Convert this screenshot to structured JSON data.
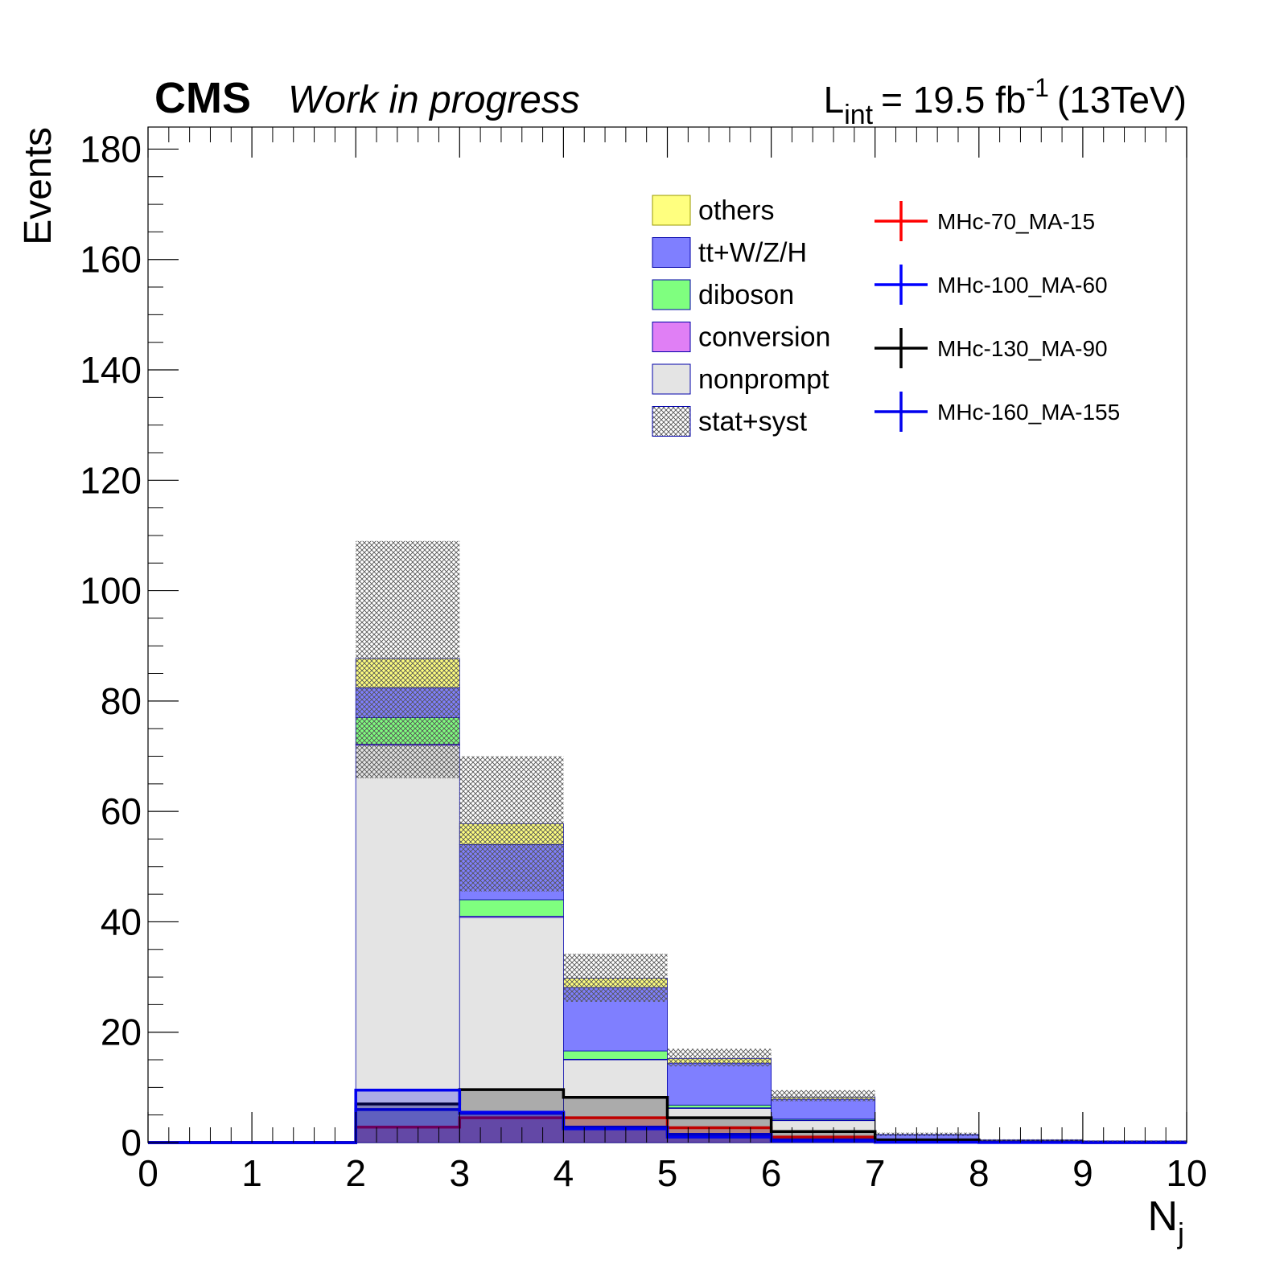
{
  "header": {
    "experiment": "CMS",
    "status": "Work in progress",
    "lumi_symbol": "L",
    "lumi_sub": "int",
    "lumi_value": "= 19.5 fb",
    "lumi_sup": "-1",
    "energy": "(13TeV)"
  },
  "chart_data": {
    "type": "bar",
    "stacked": true,
    "histogram": true,
    "bin_edges": [
      0,
      1,
      2,
      3,
      4,
      5,
      6,
      7,
      8,
      9,
      10
    ],
    "xlabel_main": "N",
    "xlabel_sub": "j",
    "ylabel": "Events",
    "xlim": [
      0,
      10
    ],
    "ylim": [
      0,
      184
    ],
    "x_ticks": [
      "0",
      "1",
      "2",
      "3",
      "4",
      "5",
      "6",
      "7",
      "8",
      "9",
      "10"
    ],
    "y_ticks": [
      "0",
      "20",
      "40",
      "60",
      "80",
      "100",
      "120",
      "140",
      "160",
      "180"
    ],
    "grid": false,
    "legend_position": "top-right",
    "series": [
      {
        "name": "nonprompt",
        "color": "#e4e4e4",
        "values": [
          0,
          0,
          72.0,
          40.8,
          15.0,
          6.2,
          4.0,
          0.3,
          0.2,
          0.1
        ]
      },
      {
        "name": "conversion",
        "color": "#e07ff5",
        "values": [
          0,
          0,
          0.2,
          0.2,
          0.1,
          0.1,
          0.05,
          0.02,
          0.01,
          0.01
        ]
      },
      {
        "name": "diboson",
        "color": "#7fff7f",
        "values": [
          0,
          0,
          4.8,
          3.0,
          1.5,
          0.5,
          0.2,
          0.05,
          0.02,
          0.01
        ]
      },
      {
        "name": "tt+W/Z/H",
        "color": "#7f7fff",
        "values": [
          0,
          0,
          5.4,
          10.0,
          11.5,
          7.6,
          3.6,
          1.0,
          0.2,
          0.15
        ]
      },
      {
        "name": "others",
        "color": "#ffff7f",
        "values": [
          0,
          0,
          5.3,
          3.8,
          1.7,
          0.8,
          0.4,
          0.1,
          0.05,
          0.03
        ]
      }
    ],
    "uncertainty": {
      "name": "stat+syst",
      "low": [
        0,
        0,
        66.0,
        45.5,
        25.5,
        13.8,
        7.5,
        1.2,
        0.3,
        0.2
      ],
      "high": [
        0,
        0,
        109.0,
        70.0,
        34.2,
        17.0,
        9.5,
        1.8,
        0.6,
        0.4
      ]
    },
    "signals": [
      {
        "name": "MHc-70_MA-15",
        "color": "#ff0000",
        "values": [
          0,
          0,
          2.8,
          4.5,
          4.5,
          2.7,
          1.0,
          0.3,
          0.05,
          0.02
        ]
      },
      {
        "name": "MHc-100_MA-60",
        "color": "#0000ff",
        "values": [
          0,
          0,
          6.0,
          5.3,
          2.8,
          1.5,
          0.5,
          0.1,
          0.02,
          0.01
        ]
      },
      {
        "name": "MHc-130_MA-90",
        "color": "#000000",
        "values": [
          0,
          0,
          7.0,
          9.6,
          8.2,
          4.5,
          2.0,
          0.5,
          0.1,
          0.02
        ]
      },
      {
        "name": "MHc-160_MA-155",
        "color": "#0000ee",
        "values": [
          0,
          0,
          9.5,
          5.5,
          2.5,
          1.0,
          0.3,
          0.05,
          0.01,
          0.0
        ]
      }
    ],
    "signal_fill": {
      "opacity": 0.55
    }
  }
}
